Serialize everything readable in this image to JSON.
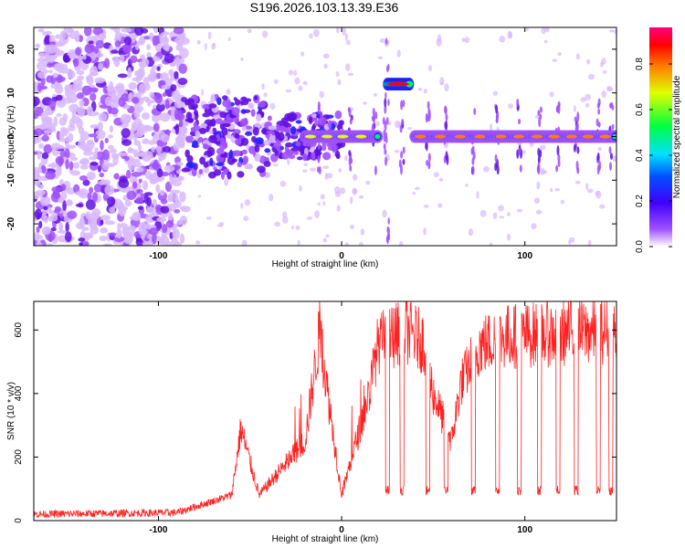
{
  "title": "S196.2026.103.13.39.E36",
  "chart_data": [
    {
      "type": "heatmap",
      "xlabel": "Height of straight line (km)",
      "ylabel": "Frequency (Hz)",
      "xlim": [
        -168,
        150
      ],
      "ylim": [
        -25,
        25
      ],
      "xticks": [
        -100,
        0,
        100
      ],
      "yticks": [
        -20,
        -10,
        0,
        10,
        20
      ],
      "colorbar": {
        "label": "Normalized spectral amplitude",
        "ticks": [
          0.0,
          0.2,
          0.4,
          0.6,
          0.8
        ],
        "range": [
          0,
          0.96
        ],
        "colors": [
          "#ffffff",
          "#8000ff",
          "#0000ff",
          "#00ffff",
          "#00ff00",
          "#ffff00",
          "#ff8000",
          "#ff0000",
          "#ff0080"
        ]
      },
      "features": {
        "noise_region_x": [
          -168,
          -85
        ],
        "signal_band_x": [
          -80,
          150
        ],
        "signal_band_freq": 0,
        "isolated_tone": {
          "x": [
            25,
            37
          ],
          "freq": 12
        },
        "gaps_x": [
          [
            20,
            24
          ],
          [
            38,
            40
          ]
        ]
      }
    },
    {
      "type": "line",
      "xlabel": "Height of straight line (km)",
      "ylabel": "SNR (10 * v/v)",
      "xlim": [
        -168,
        150
      ],
      "ylim": [
        0,
        690
      ],
      "xticks": [
        -100,
        0,
        100
      ],
      "yticks": [
        0,
        200,
        400,
        600
      ],
      "color": "#ff2020",
      "series_description": "SNR vs height",
      "key_points": [
        {
          "x": -168,
          "y": 20
        },
        {
          "x": -90,
          "y": 25
        },
        {
          "x": -60,
          "y": 80
        },
        {
          "x": -55,
          "y": 290
        },
        {
          "x": -45,
          "y": 80
        },
        {
          "x": -20,
          "y": 250
        },
        {
          "x": -12,
          "y": 590
        },
        {
          "x": 0,
          "y": 80
        },
        {
          "x": 15,
          "y": 400
        },
        {
          "x": 20,
          "y": 560
        },
        {
          "x": 35,
          "y": 600
        },
        {
          "x": 45,
          "y": 560
        },
        {
          "x": 50,
          "y": 400
        },
        {
          "x": 60,
          "y": 250
        },
        {
          "x": 65,
          "y": 430
        },
        {
          "x": 75,
          "y": 550
        },
        {
          "x": 90,
          "y": 580
        },
        {
          "x": 150,
          "y": 600
        }
      ],
      "dropouts_x": [
        25,
        33,
        47,
        57,
        72,
        85,
        97,
        108,
        118,
        128,
        140,
        147
      ]
    }
  ]
}
